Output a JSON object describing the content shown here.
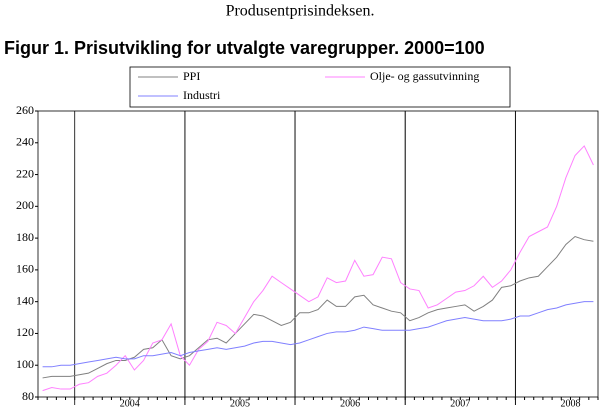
{
  "heading": "Produsentprisindeksen.",
  "chart_data": {
    "type": "line",
    "title": "Figur 1. Prisutvikling for utvalgte varegrupper. 2000=100",
    "categories": [
      null,
      null,
      null,
      null,
      null,
      null,
      null,
      null,
      null,
      "2004",
      null,
      null,
      null,
      null,
      null,
      null,
      null,
      null,
      null,
      null,
      null,
      "2005",
      null,
      null,
      null,
      null,
      null,
      null,
      null,
      null,
      null,
      null,
      null,
      "2006",
      null,
      null,
      null,
      null,
      null,
      null,
      null,
      null,
      null,
      null,
      null,
      "2007",
      null,
      null,
      null,
      null,
      null,
      null,
      null,
      null,
      null,
      null,
      null,
      "2008",
      null,
      null,
      null
    ],
    "series": [
      {
        "name": "PPI",
        "color": "#808080",
        "values": [
          92,
          93,
          93,
          93,
          94,
          95,
          98,
          101,
          103,
          103,
          105,
          110,
          111,
          116,
          106,
          104,
          106,
          111,
          116,
          117,
          114,
          120,
          126,
          132,
          131,
          128,
          125,
          127,
          133,
          133,
          135,
          141,
          137,
          137,
          143,
          144,
          138,
          136,
          134,
          133,
          128,
          130,
          133,
          135,
          136,
          137,
          138,
          134,
          137,
          141,
          149,
          150,
          153,
          155,
          156,
          162,
          168,
          176,
          181,
          179,
          178
        ]
      },
      {
        "name": "Olje- og gassutvinning",
        "color": "#ff80ff",
        "values": [
          84,
          86,
          85,
          85,
          88,
          89,
          93,
          95,
          100,
          106,
          97,
          103,
          114,
          116,
          126,
          106,
          100,
          110,
          115,
          127,
          125,
          120,
          130,
          140,
          147,
          156,
          152,
          148,
          144,
          140,
          143,
          155,
          152,
          153,
          166,
          156,
          157,
          168,
          167,
          152,
          148,
          147,
          136,
          138,
          142,
          146,
          147,
          150,
          156,
          149,
          153,
          160,
          171,
          181,
          184,
          187,
          200,
          218,
          232,
          238,
          226
        ]
      },
      {
        "name": "Industri",
        "color": "#8080ff",
        "values": [
          99,
          99,
          100,
          100,
          101,
          102,
          103,
          104,
          105,
          104,
          104,
          106,
          106,
          107,
          108,
          106,
          108,
          109,
          110,
          111,
          110,
          111,
          112,
          114,
          115,
          115,
          114,
          113,
          114,
          116,
          118,
          120,
          121,
          121,
          122,
          124,
          123,
          122,
          122,
          122,
          122,
          123,
          124,
          126,
          128,
          129,
          130,
          129,
          128,
          128,
          128,
          129,
          131,
          131,
          133,
          135,
          136,
          138,
          139,
          140,
          140
        ]
      }
    ],
    "ylim": [
      80,
      260
    ],
    "yticks": [
      80,
      100,
      120,
      140,
      160,
      180,
      200,
      220,
      240,
      260
    ],
    "year_grid": true
  }
}
